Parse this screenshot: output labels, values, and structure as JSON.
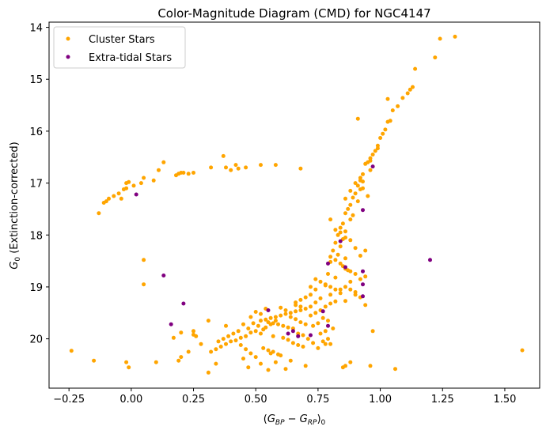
{
  "chart_data": {
    "type": "scatter",
    "title": "Color-Magnitude Diagram (CMD) for NGC4147",
    "xlabel": "(G_BP − G_RP)_0",
    "ylabel": "G_0 (Extinction-corrected)",
    "xlim": [
      -0.33,
      1.64
    ],
    "ylim": [
      20.95,
      13.9
    ],
    "y_inverted": true,
    "xticks": [
      -0.25,
      0.0,
      0.25,
      0.5,
      0.75,
      1.0,
      1.25,
      1.5
    ],
    "yticks": [
      14,
      15,
      16,
      17,
      18,
      19,
      20
    ],
    "xtick_labels": [
      "−0.25",
      "0.00",
      "0.25",
      "0.50",
      "0.75",
      "1.00",
      "1.25",
      "1.50"
    ],
    "ytick_labels": [
      "14",
      "15",
      "16",
      "17",
      "18",
      "19",
      "20"
    ],
    "grid": false,
    "legend_position": "top-left",
    "series": [
      {
        "name": "Cluster Stars",
        "color": "#ffa500",
        "points": [
          [
            1.3,
            14.18
          ],
          [
            1.24,
            14.22
          ],
          [
            1.22,
            14.58
          ],
          [
            1.14,
            14.8
          ],
          [
            1.13,
            15.15
          ],
          [
            1.12,
            15.2
          ],
          [
            1.11,
            15.27
          ],
          [
            1.09,
            15.36
          ],
          [
            1.03,
            15.38
          ],
          [
            1.07,
            15.52
          ],
          [
            1.05,
            15.6
          ],
          [
            1.04,
            15.8
          ],
          [
            1.03,
            15.82
          ],
          [
            0.91,
            15.76
          ],
          [
            1.02,
            15.97
          ],
          [
            1.01,
            16.05
          ],
          [
            1.0,
            16.13
          ],
          [
            0.99,
            16.28
          ],
          [
            0.99,
            16.33
          ],
          [
            0.98,
            16.38
          ],
          [
            0.97,
            16.45
          ],
          [
            0.96,
            16.52
          ],
          [
            0.96,
            16.57
          ],
          [
            0.95,
            16.6
          ],
          [
            0.94,
            16.63
          ],
          [
            0.96,
            16.75
          ],
          [
            0.93,
            16.83
          ],
          [
            0.92,
            16.9
          ],
          [
            0.93,
            16.97
          ],
          [
            0.91,
            17.05
          ],
          [
            0.92,
            17.12
          ],
          [
            0.9,
            17.2
          ],
          [
            0.89,
            17.28
          ],
          [
            0.91,
            17.35
          ],
          [
            0.88,
            17.42
          ],
          [
            0.87,
            17.5
          ],
          [
            0.86,
            17.58
          ],
          [
            0.89,
            17.62
          ],
          [
            0.88,
            17.7
          ],
          [
            0.85,
            17.78
          ],
          [
            0.84,
            17.86
          ],
          [
            0.86,
            17.93
          ],
          [
            0.83,
            18.0
          ],
          [
            0.85,
            18.08
          ],
          [
            0.82,
            18.15
          ],
          [
            0.84,
            18.22
          ],
          [
            0.81,
            18.3
          ],
          [
            0.83,
            18.38
          ],
          [
            0.86,
            18.45
          ],
          [
            0.8,
            18.52
          ],
          [
            0.85,
            18.6
          ],
          [
            0.87,
            18.68
          ],
          [
            0.79,
            18.75
          ],
          [
            0.82,
            18.82
          ],
          [
            0.88,
            18.9
          ],
          [
            0.78,
            18.97
          ],
          [
            0.84,
            19.05
          ],
          [
            0.9,
            19.1
          ],
          [
            0.8,
            19.15
          ],
          [
            0.92,
            19.2
          ],
          [
            0.76,
            19.22
          ],
          [
            0.86,
            19.27
          ],
          [
            0.74,
            19.3
          ],
          [
            0.94,
            19.35
          ],
          [
            0.72,
            19.38
          ],
          [
            0.7,
            19.42
          ],
          [
            0.68,
            19.45
          ],
          [
            0.66,
            19.47
          ],
          [
            0.64,
            19.5
          ],
          [
            0.62,
            19.52
          ],
          [
            0.6,
            19.55
          ],
          [
            0.58,
            19.58
          ],
          [
            0.56,
            19.6
          ],
          [
            0.54,
            19.63
          ],
          [
            0.52,
            19.65
          ],
          [
            0.55,
            19.68
          ],
          [
            0.57,
            19.7
          ],
          [
            0.59,
            19.72
          ],
          [
            0.61,
            19.75
          ],
          [
            0.63,
            19.78
          ],
          [
            0.65,
            19.8
          ],
          [
            0.53,
            19.82
          ],
          [
            0.5,
            19.85
          ],
          [
            0.48,
            19.88
          ],
          [
            0.67,
            19.9
          ],
          [
            0.69,
            19.93
          ],
          [
            0.46,
            19.95
          ],
          [
            0.44,
            19.98
          ],
          [
            0.71,
            20.0
          ],
          [
            0.42,
            20.03
          ],
          [
            0.4,
            20.05
          ],
          [
            0.73,
            20.08
          ],
          [
            0.38,
            20.1
          ],
          [
            0.36,
            20.15
          ],
          [
            0.75,
            20.18
          ],
          [
            0.34,
            20.2
          ],
          [
            0.32,
            20.25
          ],
          [
            0.56,
            20.28
          ],
          [
            0.6,
            20.32
          ],
          [
            0.5,
            20.35
          ],
          [
            0.45,
            20.38
          ],
          [
            0.64,
            20.42
          ],
          [
            0.58,
            20.45
          ],
          [
            0.52,
            20.48
          ],
          [
            0.7,
            20.52
          ],
          [
            0.47,
            20.55
          ],
          [
            0.62,
            20.58
          ],
          [
            0.55,
            20.6
          ],
          [
            0.6,
            19.4
          ],
          [
            0.62,
            19.45
          ],
          [
            0.64,
            19.58
          ],
          [
            0.66,
            19.62
          ],
          [
            0.68,
            19.68
          ],
          [
            0.7,
            19.72
          ],
          [
            0.58,
            19.65
          ],
          [
            0.56,
            19.72
          ],
          [
            0.54,
            19.78
          ],
          [
            0.52,
            19.9
          ],
          [
            0.57,
            19.95
          ],
          [
            0.61,
            19.98
          ],
          [
            0.63,
            20.02
          ],
          [
            0.49,
            19.7
          ],
          [
            0.51,
            19.75
          ],
          [
            0.47,
            19.8
          ],
          [
            0.45,
            19.72
          ],
          [
            0.43,
            19.85
          ],
          [
            0.41,
            19.9
          ],
          [
            0.39,
            19.95
          ],
          [
            0.37,
            20.0
          ],
          [
            0.35,
            20.05
          ],
          [
            0.65,
            20.08
          ],
          [
            0.67,
            20.12
          ],
          [
            0.69,
            20.15
          ],
          [
            0.53,
            20.18
          ],
          [
            0.55,
            20.22
          ],
          [
            0.57,
            20.25
          ],
          [
            0.59,
            20.3
          ],
          [
            0.48,
            20.28
          ],
          [
            0.46,
            20.2
          ],
          [
            0.44,
            20.12
          ],
          [
            0.72,
            19.55
          ],
          [
            0.74,
            19.5
          ],
          [
            0.76,
            19.45
          ],
          [
            0.78,
            19.38
          ],
          [
            0.8,
            19.32
          ],
          [
            0.82,
            19.28
          ],
          [
            0.77,
            19.6
          ],
          [
            0.79,
            19.65
          ],
          [
            0.75,
            19.7
          ],
          [
            0.73,
            19.75
          ],
          [
            0.81,
            19.8
          ],
          [
            0.78,
            19.85
          ],
          [
            0.76,
            19.9
          ],
          [
            0.79,
            20.0
          ],
          [
            0.77,
            20.05
          ],
          [
            0.8,
            20.1
          ],
          [
            0.66,
            19.35
          ],
          [
            0.68,
            19.38
          ],
          [
            0.54,
            19.42
          ],
          [
            0.5,
            19.48
          ],
          [
            0.52,
            19.52
          ],
          [
            0.48,
            19.58
          ],
          [
            0.86,
            19.0
          ],
          [
            0.88,
            19.05
          ],
          [
            0.9,
            19.15
          ],
          [
            0.84,
            19.12
          ],
          [
            0.82,
            19.05
          ],
          [
            0.8,
            19.0
          ],
          [
            0.78,
            18.95
          ],
          [
            0.76,
            18.9
          ],
          [
            0.92,
            18.85
          ],
          [
            0.94,
            18.8
          ],
          [
            0.9,
            18.75
          ],
          [
            0.88,
            18.7
          ],
          [
            0.86,
            18.65
          ],
          [
            0.84,
            18.55
          ],
          [
            0.82,
            18.48
          ],
          [
            0.8,
            18.42
          ],
          [
            0.92,
            18.4
          ],
          [
            0.94,
            18.3
          ],
          [
            0.9,
            18.25
          ],
          [
            0.88,
            18.1
          ],
          [
            0.86,
            18.05
          ],
          [
            0.84,
            17.95
          ],
          [
            0.82,
            17.9
          ],
          [
            0.8,
            17.7
          ],
          [
            0.86,
            17.3
          ],
          [
            0.88,
            17.15
          ],
          [
            0.9,
            17.0
          ],
          [
            0.92,
            16.95
          ],
          [
            0.93,
            17.1
          ],
          [
            0.95,
            17.25
          ],
          [
            0.97,
            19.85
          ],
          [
            0.88,
            20.45
          ],
          [
            0.78,
            20.1
          ],
          [
            0.86,
            20.52
          ],
          [
            0.74,
            19.05
          ],
          [
            0.72,
            19.15
          ],
          [
            0.7,
            19.2
          ],
          [
            0.68,
            19.25
          ],
          [
            0.66,
            19.3
          ],
          [
            0.74,
            18.85
          ],
          [
            0.72,
            19.0
          ],
          [
            -0.13,
            17.58
          ],
          [
            -0.11,
            17.38
          ],
          [
            -0.1,
            17.35
          ],
          [
            -0.09,
            17.3
          ],
          [
            -0.07,
            17.25
          ],
          [
            -0.05,
            17.2
          ],
          [
            -0.03,
            17.12
          ],
          [
            -0.02,
            17.0
          ],
          [
            -0.01,
            16.98
          ],
          [
            0.01,
            17.05
          ],
          [
            0.04,
            17.0
          ],
          [
            0.05,
            16.9
          ],
          [
            0.09,
            16.95
          ],
          [
            0.11,
            16.75
          ],
          [
            0.13,
            16.6
          ],
          [
            0.18,
            16.85
          ],
          [
            0.19,
            16.82
          ],
          [
            0.2,
            16.8
          ],
          [
            0.21,
            16.8
          ],
          [
            0.23,
            16.82
          ],
          [
            0.25,
            16.8
          ],
          [
            0.32,
            16.7
          ],
          [
            0.37,
            16.48
          ],
          [
            0.38,
            16.7
          ],
          [
            0.4,
            16.75
          ],
          [
            0.42,
            16.65
          ],
          [
            0.43,
            16.72
          ],
          [
            0.46,
            16.7
          ],
          [
            0.52,
            16.65
          ],
          [
            0.58,
            16.65
          ],
          [
            0.68,
            16.72
          ],
          [
            -0.02,
            17.1
          ],
          [
            -0.04,
            17.3
          ],
          [
            0.05,
            18.48
          ],
          [
            0.05,
            18.95
          ],
          [
            0.17,
            19.98
          ],
          [
            0.2,
            19.88
          ],
          [
            0.25,
            19.85
          ],
          [
            0.25,
            19.92
          ],
          [
            0.23,
            20.25
          ],
          [
            0.2,
            20.35
          ],
          [
            0.19,
            20.42
          ],
          [
            0.1,
            20.45
          ],
          [
            -0.02,
            20.45
          ],
          [
            -0.01,
            20.55
          ],
          [
            -0.15,
            20.42
          ],
          [
            -0.24,
            20.23
          ],
          [
            0.31,
            20.65
          ],
          [
            0.34,
            20.48
          ],
          [
            0.31,
            19.65
          ],
          [
            0.38,
            19.75
          ],
          [
            0.85,
            20.55
          ],
          [
            0.96,
            20.52
          ],
          [
            1.06,
            20.58
          ],
          [
            1.57,
            20.22
          ],
          [
            0.28,
            20.1
          ],
          [
            0.26,
            19.95
          ]
        ]
      },
      {
        "name": "Extra-tidal Stars",
        "color": "#800080",
        "points": [
          [
            0.97,
            16.68
          ],
          [
            0.02,
            17.22
          ],
          [
            0.93,
            17.52
          ],
          [
            0.84,
            18.12
          ],
          [
            0.79,
            18.55
          ],
          [
            0.86,
            18.62
          ],
          [
            0.93,
            18.7
          ],
          [
            0.93,
            18.95
          ],
          [
            0.13,
            18.78
          ],
          [
            1.2,
            18.48
          ],
          [
            0.21,
            19.32
          ],
          [
            0.93,
            19.18
          ],
          [
            0.77,
            19.47
          ],
          [
            0.16,
            19.72
          ],
          [
            0.79,
            19.75
          ],
          [
            0.63,
            19.9
          ],
          [
            0.67,
            19.95
          ],
          [
            0.72,
            19.93
          ],
          [
            0.65,
            19.85
          ],
          [
            0.55,
            19.45
          ]
        ]
      }
    ]
  }
}
